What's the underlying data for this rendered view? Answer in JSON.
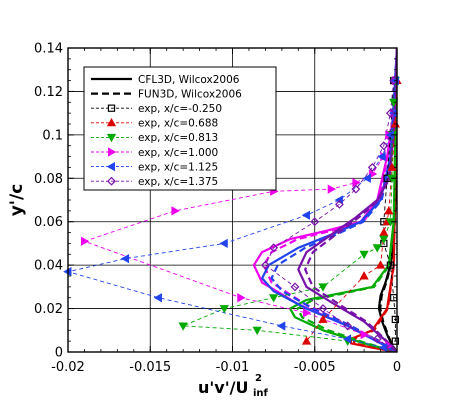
{
  "chart_data": {
    "type": "line",
    "xlabel": "u'v'/U",
    "xlabel_sub": "inf",
    "xlabel_sup": "2",
    "ylabel": "y'/c",
    "xlim": [
      -0.02,
      0
    ],
    "ylim": [
      0,
      0.14
    ],
    "x_ticks": [
      -0.02,
      -0.015,
      -0.01,
      -0.005,
      0
    ],
    "x_tick_labels": [
      "-0.02",
      "-0.015",
      "-0.01",
      "-0.005",
      "0"
    ],
    "y_ticks": [
      0,
      0.02,
      0.04,
      0.06,
      0.08,
      0.1,
      0.12,
      0.14
    ],
    "y_tick_labels": [
      "0",
      "0.02",
      "0.04",
      "0.06",
      "0.08",
      "0.1",
      "0.12",
      "0.14"
    ],
    "grid": true,
    "legend_position": "top-left",
    "legend": [
      {
        "label": "CFL3D, Wilcox2006",
        "style": "solid",
        "color": "#000000"
      },
      {
        "label": "FUN3D, Wilcox2006",
        "style": "dashed",
        "color": "#000000"
      },
      {
        "label": "exp, x/c=-0.250",
        "style": "dashed-marker",
        "color": "#000000",
        "marker": "square"
      },
      {
        "label": "exp, x/c=0.688",
        "style": "dashed-marker",
        "color": "#dd0000",
        "marker": "triangle-up"
      },
      {
        "label": "exp, x/c=0.813",
        "style": "dashed-marker",
        "color": "#00aa00",
        "marker": "triangle-down"
      },
      {
        "label": "exp, x/c=1.000",
        "style": "dashed-marker",
        "color": "#ee00ee",
        "marker": "triangle-right"
      },
      {
        "label": "exp, x/c=1.125",
        "style": "dashed-marker",
        "color": "#2244ee",
        "marker": "triangle-left"
      },
      {
        "label": "exp, x/c=1.375",
        "style": "dashed-marker",
        "color": "#7711aa",
        "marker": "diamond"
      }
    ],
    "series": [
      {
        "kind": "cfd",
        "station": "-0.250",
        "color": "#000000",
        "x": [
          0,
          -0.0003,
          -0.0006,
          -0.0009,
          -0.0011,
          -0.001,
          -0.0007,
          -0.0004,
          -0.0002,
          -0.0001,
          0
        ],
        "y": [
          0.0,
          0.003,
          0.008,
          0.014,
          0.02,
          0.026,
          0.032,
          0.04,
          0.05,
          0.07,
          0.14
        ]
      },
      {
        "kind": "cfd",
        "station": "0.688",
        "color": "#dd0000",
        "x": [
          0,
          -0.0015,
          -0.0028,
          -0.0028,
          -0.0015,
          -0.0006,
          -0.0002,
          0
        ],
        "y": [
          0.0,
          0.002,
          0.004,
          0.006,
          0.01,
          0.02,
          0.04,
          0.14
        ]
      },
      {
        "kind": "cfd",
        "station": "0.813",
        "color": "#00aa00",
        "x": [
          0,
          -0.002,
          -0.0045,
          -0.0062,
          -0.0065,
          -0.0055,
          -0.0035,
          -0.0015,
          -0.0005,
          -0.0002,
          0
        ],
        "y": [
          0.0,
          0.004,
          0.01,
          0.016,
          0.02,
          0.024,
          0.027,
          0.03,
          0.04,
          0.06,
          0.14
        ]
      },
      {
        "kind": "cfd",
        "station": "1.000",
        "color": "#ee00ee",
        "x": [
          0,
          -0.001,
          -0.003,
          -0.006,
          -0.0082,
          -0.0087,
          -0.0082,
          -0.0065,
          -0.0042,
          -0.0022,
          -0.0012,
          -0.0006,
          -0.0002,
          0
        ],
        "y": [
          0.0,
          0.004,
          0.012,
          0.022,
          0.032,
          0.04,
          0.046,
          0.052,
          0.056,
          0.06,
          0.07,
          0.09,
          0.11,
          0.14
        ]
      },
      {
        "kind": "cfd",
        "station": "1.125",
        "color": "#2244ee",
        "x": [
          0,
          -0.001,
          -0.003,
          -0.0055,
          -0.0075,
          -0.0082,
          -0.0078,
          -0.006,
          -0.004,
          -0.0022,
          -0.001,
          -0.0004,
          0
        ],
        "y": [
          0.0,
          0.004,
          0.012,
          0.02,
          0.028,
          0.034,
          0.04,
          0.048,
          0.054,
          0.06,
          0.07,
          0.09,
          0.14
        ]
      },
      {
        "kind": "cfd",
        "station": "1.375",
        "color": "#7711aa",
        "x": [
          0,
          -0.0008,
          -0.002,
          -0.0038,
          -0.0055,
          -0.006,
          -0.0055,
          -0.004,
          -0.0025,
          -0.0012,
          -0.0005,
          -0.0002,
          0
        ],
        "y": [
          0.0,
          0.006,
          0.014,
          0.022,
          0.03,
          0.038,
          0.046,
          0.054,
          0.062,
          0.07,
          0.08,
          0.1,
          0.14
        ]
      },
      {
        "kind": "exp",
        "station": "-0.250",
        "color": "#000000",
        "marker": "square",
        "x": [
          -0.0002,
          -0.0004,
          -0.0006,
          -0.0008,
          -0.0008,
          -0.0004,
          -0.0002,
          -0.0001,
          -0.0001
        ],
        "y": [
          0.125,
          0.1,
          0.08,
          0.06,
          0.05,
          0.04,
          0.025,
          0.015,
          0.005
        ]
      },
      {
        "kind": "exp",
        "station": "0.688",
        "color": "#dd0000",
        "marker": "triangle-up",
        "x": [
          0,
          -0.0001,
          -0.0003,
          -0.0005,
          -0.0006,
          -0.0008,
          -0.001,
          -0.002,
          -0.0045,
          -0.0055
        ],
        "y": [
          0.125,
          0.105,
          0.085,
          0.065,
          0.06,
          0.055,
          0.04,
          0.035,
          0.015,
          0.005
        ]
      },
      {
        "kind": "exp",
        "station": "0.813",
        "color": "#00aa00",
        "marker": "triangle-down",
        "x": [
          -0.0001,
          -0.0002,
          -0.0003,
          -0.0003,
          -0.0004,
          -0.0008,
          -0.0012,
          -0.002,
          -0.0045,
          -0.0075,
          -0.0105,
          -0.013,
          -0.0085,
          -0.003
        ],
        "y": [
          0.125,
          0.115,
          0.1,
          0.08,
          0.06,
          0.052,
          0.048,
          0.045,
          0.03,
          0.025,
          0.02,
          0.012,
          0.01,
          0.005
        ]
      },
      {
        "kind": "exp",
        "station": "1.000",
        "color": "#ee00ee",
        "marker": "triangle-right",
        "x": [
          -0.0001,
          -0.0002,
          -0.0005,
          -0.0008,
          -0.0015,
          -0.0025,
          -0.004,
          -0.0075,
          -0.0135,
          -0.019,
          -0.0095,
          -0.0055,
          -0.002,
          -0.0005
        ],
        "y": [
          0.125,
          0.11,
          0.1,
          0.09,
          0.082,
          0.078,
          0.075,
          0.074,
          0.065,
          0.051,
          0.025,
          0.018,
          0.008,
          0.003
        ]
      },
      {
        "kind": "exp",
        "station": "1.125",
        "color": "#2244ee",
        "marker": "triangle-left",
        "x": [
          -0.0001,
          -0.0002,
          -0.0004,
          -0.0009,
          -0.0018,
          -0.0035,
          -0.0055,
          -0.0105,
          -0.0165,
          -0.02,
          -0.0145,
          -0.007,
          -0.003,
          -0.0008
        ],
        "y": [
          0.125,
          0.11,
          0.1,
          0.09,
          0.08,
          0.07,
          0.063,
          0.05,
          0.043,
          0.037,
          0.025,
          0.012,
          0.006,
          0.002
        ]
      },
      {
        "kind": "exp",
        "station": "1.375",
        "color": "#7711aa",
        "marker": "diamond",
        "x": [
          -0.0002,
          -0.0004,
          -0.0008,
          -0.0015,
          -0.0025,
          -0.0035,
          -0.005,
          -0.0075,
          -0.008,
          -0.0062,
          -0.0045,
          -0.003,
          -0.0012,
          -0.0004
        ],
        "y": [
          0.125,
          0.11,
          0.095,
          0.085,
          0.075,
          0.068,
          0.06,
          0.048,
          0.04,
          0.03,
          0.02,
          0.012,
          0.006,
          0.002
        ]
      }
    ]
  }
}
